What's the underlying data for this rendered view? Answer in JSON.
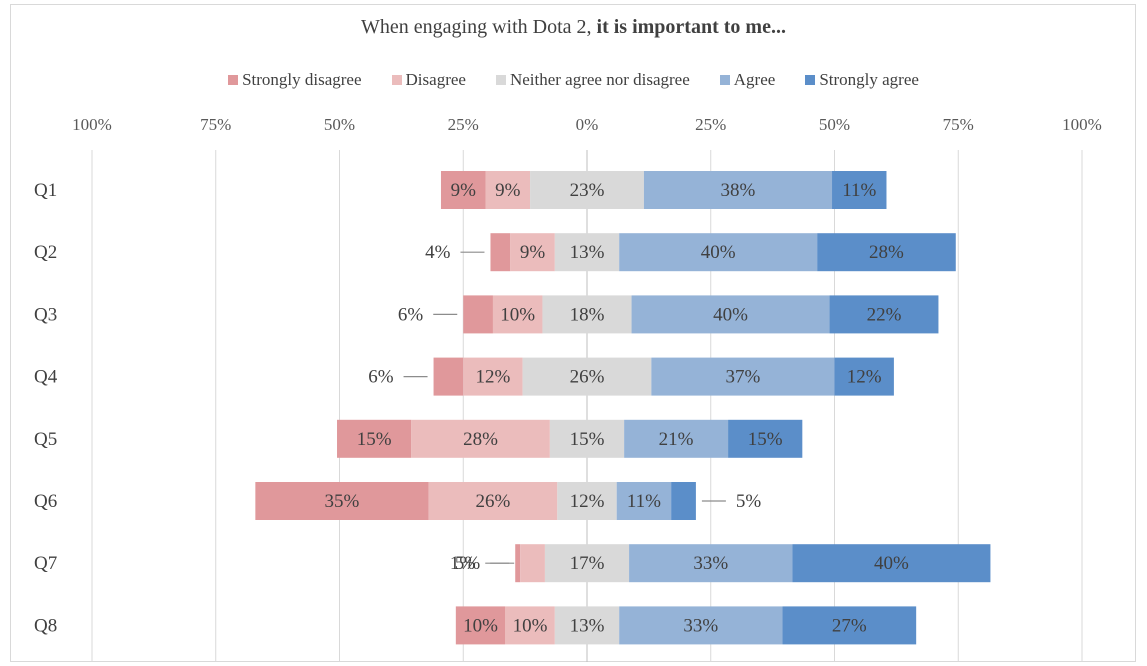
{
  "colors": {
    "strongly_disagree": "#e0989b",
    "disagree": "#ebbcbc",
    "neutral": "#d9d9d9",
    "agree": "#95b3d7",
    "strongly_agree": "#5b8ec9"
  },
  "chart_data": {
    "type": "bar",
    "orientation": "horizontal-diverging-stacked",
    "title_plain": "When engaging with Dota 2, ",
    "title_bold": "it is important to me...",
    "legend_position": "top",
    "legend": [
      "Strongly disagree",
      "Disagree",
      "Neither agree nor disagree",
      "Agree",
      "Strongly agree"
    ],
    "x_ticks": [
      "100%",
      "75%",
      "50%",
      "25%",
      "0%",
      "25%",
      "50%",
      "75%",
      "100%"
    ],
    "xlim": [
      -100,
      100
    ],
    "grid": true,
    "categories": [
      "Q1",
      "Q2",
      "Q3",
      "Q4",
      "Q5",
      "Q6",
      "Q7",
      "Q8"
    ],
    "series": [
      {
        "name": "Strongly disagree",
        "values": [
          9,
          4,
          6,
          6,
          15,
          35,
          1,
          10
        ]
      },
      {
        "name": "Disagree",
        "values": [
          9,
          9,
          10,
          12,
          28,
          26,
          5,
          10
        ]
      },
      {
        "name": "Neither agree nor disagree",
        "values": [
          23,
          13,
          18,
          26,
          15,
          12,
          17,
          13
        ]
      },
      {
        "name": "Agree",
        "values": [
          38,
          40,
          40,
          37,
          21,
          11,
          33,
          33
        ]
      },
      {
        "name": "Strongly agree",
        "values": [
          11,
          28,
          22,
          12,
          15,
          5,
          40,
          27
        ]
      }
    ],
    "value_suffix": "%"
  }
}
